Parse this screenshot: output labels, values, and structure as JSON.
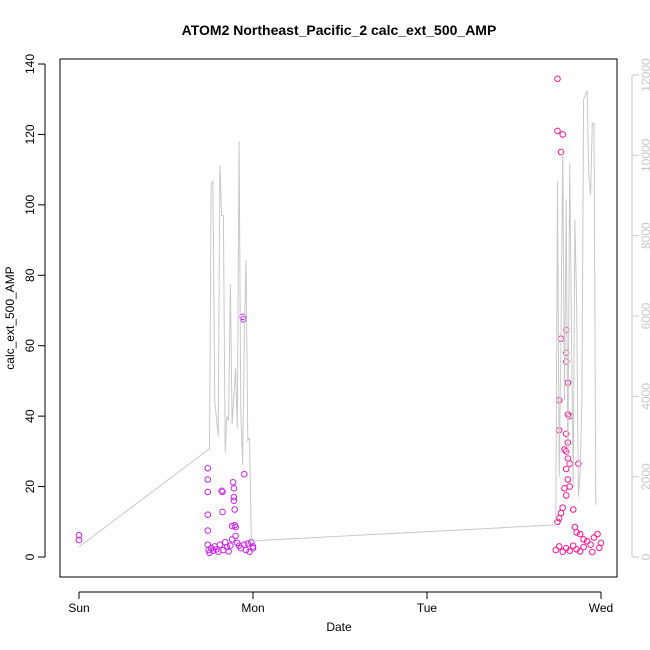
{
  "chart_data": {
    "type": "scatter",
    "title": "ATOM2 Northeast_Pacific_2 calc_ext_500_AMP",
    "xlabel": "Date",
    "ylabel": "calc_ext_500_AMP",
    "x_ticks": [
      "Sun",
      "Mon",
      "Tue",
      "Wed"
    ],
    "x_range_days": [
      -0.03,
      3.03
    ],
    "left_axis": {
      "range": [
        0,
        140
      ],
      "ticks": [
        0,
        20,
        40,
        60,
        80,
        100,
        120,
        140
      ]
    },
    "right_axis": {
      "range": [
        0,
        12000
      ],
      "ticks": [
        0,
        2000,
        4000,
        6000,
        8000,
        10000,
        12000
      ],
      "color": "#c8c8c8"
    },
    "grid": false,
    "colors": {
      "scatter_early": "#cc22ee",
      "scatter_late": "#ff1493",
      "line": "#c8c8c8"
    },
    "series": [
      {
        "kind": "points",
        "axis": "left",
        "color": "#cc22ee",
        "points": [
          [
            0.0,
            6.2
          ],
          [
            0.0,
            4.8
          ],
          [
            0.74,
            25.2
          ],
          [
            0.74,
            22.0
          ],
          [
            0.74,
            18.5
          ],
          [
            0.74,
            12.0
          ],
          [
            0.74,
            7.5
          ],
          [
            0.74,
            3.5
          ],
          [
            0.745,
            2.0
          ],
          [
            0.75,
            1.2
          ],
          [
            0.76,
            2.5
          ],
          [
            0.77,
            1.8
          ],
          [
            0.78,
            3.0
          ],
          [
            0.79,
            2.2
          ],
          [
            0.8,
            1.5
          ],
          [
            0.81,
            3.5
          ],
          [
            0.82,
            18.8
          ],
          [
            0.825,
            18.5
          ],
          [
            0.825,
            12.8
          ],
          [
            0.83,
            2.0
          ],
          [
            0.84,
            4.2
          ],
          [
            0.85,
            2.8
          ],
          [
            0.86,
            1.6
          ],
          [
            0.87,
            3.2
          ],
          [
            0.88,
            5.0
          ],
          [
            0.88,
            8.8
          ],
          [
            0.885,
            21.2
          ],
          [
            0.89,
            19.5
          ],
          [
            0.89,
            17.0
          ],
          [
            0.89,
            16.0
          ],
          [
            0.895,
            13.5
          ],
          [
            0.895,
            9.0
          ],
          [
            0.9,
            8.5
          ],
          [
            0.9,
            6.0
          ],
          [
            0.91,
            4.0
          ],
          [
            0.92,
            3.2
          ],
          [
            0.93,
            2.5
          ],
          [
            0.94,
            68.2
          ],
          [
            0.945,
            67.5
          ],
          [
            0.95,
            23.5
          ],
          [
            0.95,
            3.5
          ],
          [
            0.96,
            2.0
          ],
          [
            0.97,
            3.8
          ],
          [
            0.98,
            1.5
          ],
          [
            0.99,
            4.2
          ],
          [
            1.0,
            2.5
          ],
          [
            1.0,
            3.0
          ]
        ]
      },
      {
        "kind": "points",
        "axis": "left",
        "color": "#ff1493",
        "points": [
          [
            2.75,
            135.8
          ],
          [
            2.75,
            121.0
          ],
          [
            2.78,
            120.0
          ],
          [
            2.77,
            115.0
          ],
          [
            2.77,
            62.0
          ],
          [
            2.76,
            44.5
          ],
          [
            2.76,
            36.0
          ],
          [
            2.8,
            64.5
          ],
          [
            2.8,
            58.0
          ],
          [
            2.8,
            55.5
          ],
          [
            2.81,
            49.5
          ],
          [
            2.81,
            40.5
          ],
          [
            2.82,
            40.0
          ],
          [
            2.8,
            35.0
          ],
          [
            2.81,
            32.5
          ],
          [
            2.8,
            30.0
          ],
          [
            2.79,
            30.5
          ],
          [
            2.81,
            28.0
          ],
          [
            2.82,
            26.5
          ],
          [
            2.8,
            25.0
          ],
          [
            2.81,
            22.0
          ],
          [
            2.82,
            20.0
          ],
          [
            2.79,
            19.5
          ],
          [
            2.8,
            17.5
          ],
          [
            2.78,
            14.0
          ],
          [
            2.77,
            12.5
          ],
          [
            2.76,
            11.0
          ],
          [
            2.75,
            10.0
          ],
          [
            2.84,
            13.5
          ],
          [
            2.85,
            8.5
          ],
          [
            2.86,
            7.0
          ],
          [
            2.87,
            26.5
          ],
          [
            2.88,
            6.5
          ],
          [
            2.9,
            5.0
          ],
          [
            2.92,
            4.5
          ],
          [
            2.94,
            3.5
          ],
          [
            2.96,
            5.5
          ],
          [
            2.98,
            6.5
          ],
          [
            3.0,
            4.0
          ],
          [
            2.74,
            2.0
          ],
          [
            2.76,
            3.0
          ],
          [
            2.78,
            1.5
          ],
          [
            2.8,
            2.5
          ],
          [
            2.82,
            1.8
          ],
          [
            2.84,
            3.2
          ],
          [
            2.86,
            2.2
          ],
          [
            2.88,
            1.6
          ],
          [
            2.9,
            2.8
          ],
          [
            2.95,
            1.4
          ],
          [
            2.99,
            2.6
          ]
        ]
      },
      {
        "kind": "line",
        "axis": "right",
        "color": "#c8c8c8",
        "points": [
          [
            0.0,
            250
          ],
          [
            0.75,
            2700
          ],
          [
            0.76,
            9300
          ],
          [
            0.77,
            9350
          ],
          [
            0.78,
            3900
          ],
          [
            0.8,
            3000
          ],
          [
            0.81,
            9750
          ],
          [
            0.82,
            8500
          ],
          [
            0.83,
            8500
          ],
          [
            0.84,
            2600
          ],
          [
            0.85,
            3500
          ],
          [
            0.86,
            3400
          ],
          [
            0.87,
            6800
          ],
          [
            0.88,
            3300
          ],
          [
            0.9,
            4700
          ],
          [
            0.91,
            3200
          ],
          [
            0.92,
            10350
          ],
          [
            0.93,
            3600
          ],
          [
            0.94,
            2300
          ],
          [
            0.95,
            5500
          ],
          [
            0.96,
            7400
          ],
          [
            0.97,
            2900
          ],
          [
            0.98,
            2950
          ],
          [
            0.99,
            400
          ],
          [
            2.74,
            800
          ],
          [
            2.75,
            9350
          ],
          [
            2.76,
            2000
          ],
          [
            2.77,
            5500
          ],
          [
            2.78,
            10200
          ],
          [
            2.79,
            3900
          ],
          [
            2.8,
            8900
          ],
          [
            2.81,
            2200
          ],
          [
            2.82,
            9800
          ],
          [
            2.83,
            5800
          ],
          [
            2.84,
            1800
          ],
          [
            2.85,
            8400
          ],
          [
            2.86,
            6400
          ],
          [
            2.87,
            1500
          ],
          [
            2.88,
            2100
          ],
          [
            2.89,
            3900
          ],
          [
            2.9,
            11400
          ],
          [
            2.92,
            11600
          ],
          [
            2.93,
            9500
          ],
          [
            2.94,
            9000
          ],
          [
            2.95,
            10800
          ],
          [
            2.96,
            10800
          ],
          [
            2.97,
            1300
          ]
        ]
      }
    ]
  }
}
